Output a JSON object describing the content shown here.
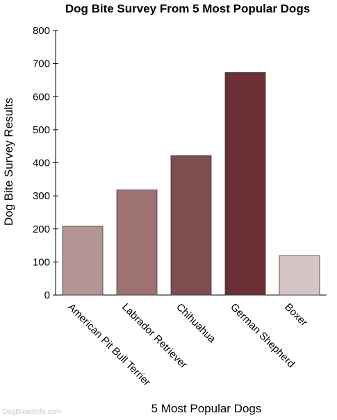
{
  "chart_data": {
    "type": "bar",
    "title": "Dog Bite Survey From 5 Most Popular Dogs",
    "xlabel": "5 Most Popular Dogs",
    "ylabel": "Dog Bite Survey Results",
    "categories": [
      "American Pit Bull Terrier",
      "Labrador Retriever",
      "Chihuahua",
      "German Shepherd",
      "Boxer"
    ],
    "values": [
      208,
      318,
      422,
      673,
      119
    ],
    "colors": [
      "#b49494",
      "#9e7272",
      "#7e4d50",
      "#6b2f35",
      "#d4c4c4"
    ],
    "ylim": [
      0,
      800
    ],
    "yticks": [
      "0",
      "100",
      "200",
      "300",
      "400",
      "500",
      "600",
      "700",
      "800"
    ],
    "grid": false,
    "legend": "none"
  },
  "watermark": "DogBreedInfo.com"
}
